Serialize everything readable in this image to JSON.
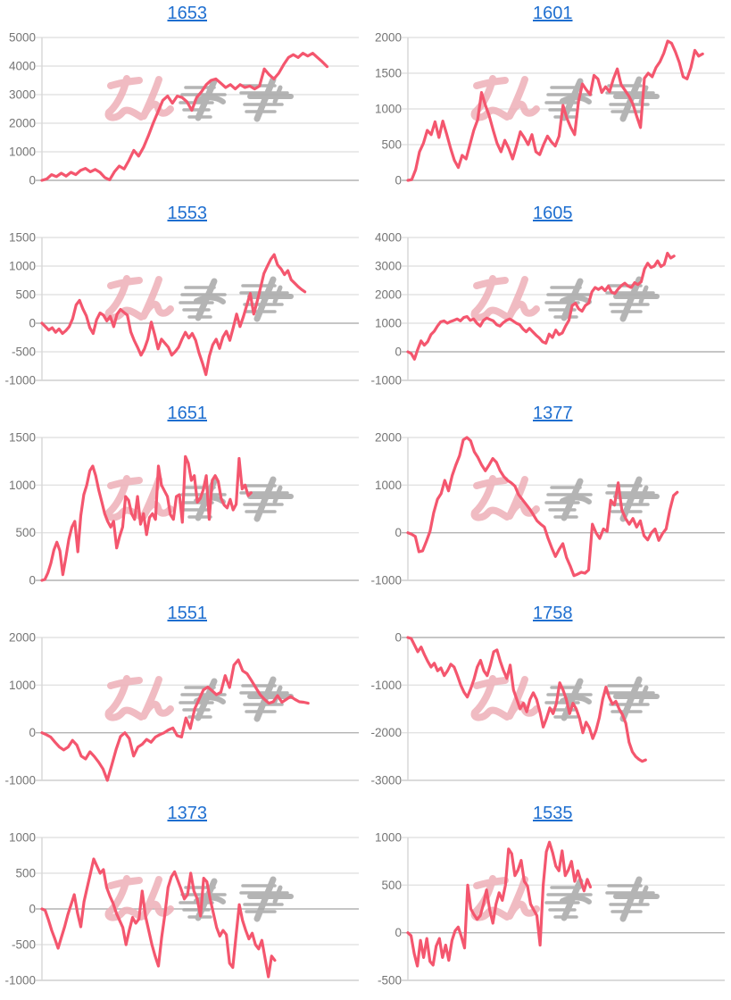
{
  "page": {
    "background": "#ffffff"
  },
  "colors": {
    "line": "#f4566e",
    "title_link": "#1f6fd0",
    "tick_label": "#757575",
    "gridline": "#e3e3e3",
    "zero_line": "#b3b3b3",
    "bottom_line": "#cfcfcf",
    "axis_line": "#d6d6d6",
    "watermark_pink": "#eeb0b8",
    "watermark_gray": "#a8a8a8"
  },
  "watermark": {
    "pink_text": "みん",
    "gray_text": "レポ"
  },
  "chart_data": [
    {
      "type": "line",
      "title": "1653",
      "ylabel": "",
      "xlabel": "",
      "legend": "none",
      "grid": "horizontal",
      "ylim": [
        0,
        5000
      ],
      "yticks": [
        0,
        1000,
        2000,
        3000,
        4000,
        5000
      ],
      "end_fraction": 0.9,
      "values": [
        0,
        50,
        200,
        130,
        250,
        150,
        280,
        200,
        350,
        420,
        300,
        380,
        280,
        100,
        20,
        300,
        500,
        400,
        700,
        1050,
        850,
        1150,
        1550,
        2000,
        2400,
        2800,
        2950,
        2700,
        2950,
        2900,
        2750,
        2450,
        2900,
        3100,
        3350,
        3500,
        3550,
        3400,
        3250,
        3350,
        3200,
        3350,
        3250,
        3300,
        3200,
        3300,
        3900,
        3700,
        3550,
        3750,
        4050,
        4300,
        4400,
        4300,
        4450,
        4350,
        4450,
        4300,
        4150,
        3980
      ]
    },
    {
      "type": "line",
      "title": "1601",
      "ylabel": "",
      "xlabel": "",
      "legend": "none",
      "grid": "horizontal",
      "ylim": [
        0,
        2000
      ],
      "yticks": [
        0,
        500,
        1000,
        1500,
        2000
      ],
      "end_fraction": 0.93,
      "values": [
        0,
        10,
        150,
        400,
        520,
        700,
        640,
        820,
        600,
        830,
        650,
        450,
        280,
        180,
        350,
        300,
        500,
        700,
        850,
        1230,
        1050,
        900,
        700,
        520,
        400,
        560,
        450,
        300,
        480,
        680,
        600,
        500,
        640,
        400,
        360,
        500,
        620,
        540,
        480,
        620,
        1050,
        870,
        740,
        640,
        1100,
        1350,
        1270,
        1200,
        1470,
        1420,
        1230,
        1310,
        1240,
        1420,
        1560,
        1340,
        1260,
        1180,
        1070,
        900,
        740,
        1430,
        1500,
        1450,
        1580,
        1660,
        1780,
        1950,
        1920,
        1800,
        1650,
        1450,
        1420,
        1580,
        1820,
        1740,
        1770
      ]
    },
    {
      "type": "line",
      "title": "1553",
      "ylabel": "",
      "xlabel": "",
      "legend": "none",
      "grid": "horizontal",
      "ylim": [
        -1000,
        1500
      ],
      "yticks": [
        -1000,
        -500,
        0,
        500,
        1000,
        1500
      ],
      "end_fraction": 0.83,
      "values": [
        0,
        -60,
        -120,
        -80,
        -160,
        -100,
        -180,
        -130,
        -60,
        80,
        320,
        400,
        250,
        130,
        -80,
        -180,
        60,
        180,
        140,
        40,
        120,
        -60,
        160,
        240,
        190,
        140,
        -150,
        -300,
        -420,
        -560,
        -450,
        -280,
        20,
        -200,
        -450,
        -280,
        -350,
        -420,
        -560,
        -500,
        -420,
        -280,
        -160,
        -260,
        -180,
        -300,
        -520,
        -700,
        -900,
        -580,
        -380,
        -280,
        -440,
        -240,
        -140,
        -300,
        -80,
        160,
        -60,
        120,
        320,
        520,
        160,
        380,
        620,
        870,
        1000,
        1120,
        1200,
        1020,
        950,
        850,
        920,
        760,
        700,
        640,
        590,
        550
      ]
    },
    {
      "type": "line",
      "title": "1605",
      "ylabel": "",
      "xlabel": "",
      "legend": "none",
      "grid": "horizontal",
      "ylim": [
        -1000,
        4000
      ],
      "yticks": [
        -1000,
        0,
        1000,
        2000,
        3000,
        4000
      ],
      "end_fraction": 0.84,
      "values": [
        0,
        -60,
        -260,
        80,
        380,
        230,
        350,
        600,
        720,
        900,
        1050,
        1080,
        1000,
        1060,
        1100,
        1150,
        1080,
        1200,
        1230,
        1100,
        1150,
        1000,
        900,
        1100,
        1180,
        1130,
        1080,
        950,
        900,
        1020,
        1100,
        1150,
        1080,
        1000,
        950,
        800,
        700,
        820,
        700,
        580,
        480,
        350,
        300,
        620,
        500,
        760,
        600,
        660,
        900,
        1100,
        1620,
        1700,
        1500,
        1420,
        1620,
        1700,
        2100,
        2250,
        2180,
        2260,
        2140,
        2300,
        2080,
        2040,
        2200,
        2320,
        2400,
        2300,
        2250,
        2420,
        2350,
        2450,
        2900,
        3100,
        2950,
        3000,
        3180,
        2980,
        3060,
        3450,
        3280,
        3350
      ]
    },
    {
      "type": "line",
      "title": "1651",
      "ylabel": "",
      "xlabel": "",
      "legend": "none",
      "grid": "horizontal",
      "ylim": [
        0,
        1500
      ],
      "yticks": [
        0,
        500,
        1000,
        1500
      ],
      "end_fraction": 0.66,
      "values": [
        0,
        10,
        80,
        180,
        320,
        400,
        310,
        60,
        240,
        430,
        560,
        620,
        300,
        680,
        900,
        1000,
        1150,
        1200,
        1100,
        950,
        830,
        700,
        620,
        560,
        620,
        340,
        460,
        560,
        880,
        840,
        700,
        640,
        880,
        590,
        700,
        480,
        660,
        700,
        640,
        1200,
        1000,
        940,
        880,
        690,
        640,
        880,
        900,
        610,
        1300,
        1230,
        1050,
        1100,
        820,
        860,
        950,
        1100,
        640,
        1050,
        1100,
        1040,
        860,
        790,
        760,
        850,
        740,
        800,
        1280,
        960,
        1000,
        890,
        920
      ]
    },
    {
      "type": "line",
      "title": "1377",
      "ylabel": "",
      "xlabel": "",
      "legend": "none",
      "grid": "horizontal",
      "ylim": [
        -1000,
        2000
      ],
      "yticks": [
        -1000,
        0,
        1000,
        2000
      ],
      "end_fraction": 0.85,
      "values": [
        0,
        -30,
        -80,
        -400,
        -380,
        -180,
        30,
        420,
        700,
        820,
        1100,
        880,
        1200,
        1420,
        1620,
        1950,
        2000,
        1930,
        1700,
        1580,
        1420,
        1300,
        1420,
        1560,
        1480,
        1300,
        1180,
        1100,
        1050,
        980,
        800,
        700,
        600,
        500,
        380,
        250,
        180,
        120,
        -120,
        -320,
        -500,
        -350,
        -230,
        -520,
        -700,
        -900,
        -870,
        -830,
        -850,
        -780,
        180,
        0,
        -120,
        80,
        30,
        680,
        580,
        1050,
        480,
        300,
        180,
        300,
        120,
        250,
        -60,
        -150,
        0,
        80,
        -160,
        -20,
        80,
        480,
        780,
        850
      ]
    },
    {
      "type": "line",
      "title": "1551",
      "ylabel": "",
      "xlabel": "",
      "legend": "none",
      "grid": "horizontal",
      "ylim": [
        -1000,
        2000
      ],
      "yticks": [
        -1000,
        0,
        1000,
        2000
      ],
      "end_fraction": 0.84,
      "values": [
        0,
        -40,
        -90,
        -200,
        -300,
        -360,
        -300,
        -160,
        -260,
        -490,
        -550,
        -400,
        -500,
        -620,
        -760,
        -1000,
        -680,
        -350,
        -80,
        0,
        -120,
        -490,
        -300,
        -240,
        -140,
        -200,
        -90,
        -40,
        0,
        60,
        100,
        -60,
        -90,
        310,
        90,
        500,
        700,
        900,
        960,
        880,
        800,
        850,
        1200,
        950,
        1420,
        1530,
        1300,
        1240,
        1100,
        950,
        800,
        700,
        620,
        650,
        780,
        640,
        700,
        760,
        700,
        650,
        640,
        620
      ]
    },
    {
      "type": "line",
      "title": "1758",
      "ylabel": "",
      "xlabel": "",
      "legend": "none",
      "grid": "horizontal",
      "ylim": [
        -3000,
        0
      ],
      "yticks": [
        -3000,
        -2000,
        -1000,
        0
      ],
      "end_fraction": 0.75,
      "values": [
        0,
        -20,
        -160,
        -300,
        -200,
        -360,
        -500,
        -620,
        -540,
        -700,
        -640,
        -800,
        -700,
        -560,
        -620,
        -800,
        -1000,
        -1150,
        -1250,
        -1080,
        -880,
        -620,
        -480,
        -700,
        -800,
        -580,
        -300,
        -260,
        -500,
        -700,
        -860,
        -580,
        -1100,
        -1300,
        -1500,
        -1380,
        -1560,
        -1300,
        -1160,
        -1300,
        -1560,
        -1880,
        -1700,
        -1480,
        -1600,
        -1380,
        -950,
        -1100,
        -1300,
        -1600,
        -1380,
        -1500,
        -1700,
        -2000,
        -1780,
        -1900,
        -2120,
        -1950,
        -1680,
        -1300,
        -1040,
        -1260,
        -1400,
        -1340,
        -1500,
        -1620,
        -1800,
        -2200,
        -2400,
        -2500,
        -2560,
        -2600,
        -2570
      ]
    },
    {
      "type": "line",
      "title": "1373",
      "ylabel": "",
      "xlabel": "",
      "legend": "none",
      "grid": "horizontal",
      "ylim": [
        -1000,
        1000
      ],
      "yticks": [
        -1000,
        -500,
        0,
        500,
        1000
      ],
      "end_fraction": 0.735,
      "values": [
        0,
        -20,
        -150,
        -300,
        -420,
        -550,
        -400,
        -250,
        -80,
        60,
        200,
        -60,
        -250,
        100,
        300,
        500,
        700,
        600,
        500,
        550,
        300,
        180,
        80,
        -60,
        -160,
        -260,
        -500,
        -300,
        -120,
        -200,
        -140,
        250,
        -100,
        -300,
        -500,
        -660,
        -800,
        -400,
        -80,
        300,
        450,
        520,
        400,
        280,
        140,
        200,
        500,
        250,
        140,
        -100,
        430,
        380,
        140,
        -60,
        -260,
        -380,
        -300,
        -360,
        -760,
        -820,
        -380,
        60,
        -160,
        -300,
        -420,
        -340,
        -500,
        -560,
        -440,
        -700,
        -950,
        -660,
        -720
      ]
    },
    {
      "type": "line",
      "title": "1535",
      "ylabel": "",
      "xlabel": "",
      "legend": "none",
      "grid": "horizontal",
      "ylim": [
        -500,
        1000
      ],
      "yticks": [
        -500,
        0,
        500,
        1000
      ],
      "end_fraction": 0.576,
      "values": [
        0,
        -30,
        -220,
        -350,
        -80,
        -260,
        -60,
        -300,
        -340,
        -140,
        -60,
        -260,
        -130,
        -290,
        -80,
        20,
        60,
        -40,
        -160,
        500,
        250,
        190,
        140,
        180,
        300,
        450,
        240,
        100,
        300,
        420,
        340,
        500,
        880,
        830,
        600,
        660,
        760,
        540,
        490,
        300,
        240,
        180,
        -130,
        500,
        850,
        950,
        840,
        700,
        650,
        860,
        600,
        660,
        750,
        540,
        650,
        540,
        440,
        560,
        480
      ]
    }
  ]
}
